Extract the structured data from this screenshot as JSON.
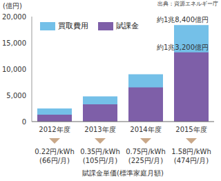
{
  "chart_data": {
    "type": "bar",
    "source": "出典：資源エネルギー庁",
    "y_label": "(億円)",
    "categories": [
      "2012年度",
      "2013年度",
      "2014年度",
      "2015年度"
    ],
    "series": [
      {
        "name": "買取費用",
        "color": "#74c0e8",
        "values": [
          2500,
          4800,
          9000,
          18400
        ]
      },
      {
        "name": "賦課金",
        "color": "#7e5fa8",
        "values": [
          1300,
          3300,
          6500,
          13200
        ]
      }
    ],
    "ylim": [
      0,
      20000
    ],
    "yticks": [
      0,
      {
        "value": 5000,
        "label": "5,000"
      },
      {
        "value": 10000,
        "label": "10,000"
      },
      {
        "value": 15000,
        "label": "15,000"
      },
      {
        "value": 20000,
        "label": "20,000"
      }
    ],
    "grid": false,
    "legend": "top-left",
    "annotations": [
      {
        "text": "約1兆8,400億円",
        "series": "買取費用",
        "category": "2015年度"
      },
      {
        "text": "約1兆3,200億円",
        "series": "賦課金",
        "category": "2015年度"
      }
    ],
    "unit_prices": [
      "0.22円/kWh",
      "0.35円/kWh",
      "0.75円/kWh",
      "1.58円/kWh"
    ],
    "monthly_charges": [
      "(66円/月)",
      "(105円/月)",
      "(225円/月)",
      "(474円/月)"
    ],
    "footer": "賦課金単価(標準家庭月額)"
  }
}
